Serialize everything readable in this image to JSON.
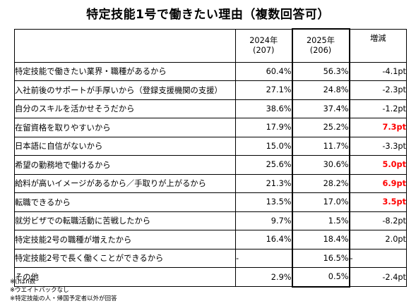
{
  "title": "特定技能1号で働きたい理由（複数回答可）",
  "chart_data": {
    "type": "table",
    "columns": [
      {
        "year": "2024年",
        "n": "(207)"
      },
      {
        "year": "2025年",
        "n": "(206)"
      },
      {
        "label": "増減"
      }
    ],
    "rows": [
      {
        "label": "特定技能で働きたい業界・職種があるから",
        "v2024": "60.4%",
        "v2025": "56.3%",
        "diff": "-4.1pt",
        "highlight": false
      },
      {
        "label": "入社前後のサポートが手厚いから（登録支援機関の支援）",
        "v2024": "27.1%",
        "v2025": "24.8%",
        "diff": "-2.3pt",
        "highlight": false
      },
      {
        "label": "自分のスキルを活かせそうだから",
        "v2024": "38.6%",
        "v2025": "37.4%",
        "diff": "-1.2pt",
        "highlight": false
      },
      {
        "label": "在留資格を取りやすいから",
        "v2024": "17.9%",
        "v2025": "25.2%",
        "diff": "7.3pt",
        "highlight": true
      },
      {
        "label": "日本語に自信がないから",
        "v2024": "15.0%",
        "v2025": "11.7%",
        "diff": "-3.3pt",
        "highlight": false
      },
      {
        "label": "希望の勤務地で働けるから",
        "v2024": "25.6%",
        "v2025": "30.6%",
        "diff": "5.0pt",
        "highlight": true
      },
      {
        "label": "給料が高いイメージがあるから／手取りが上がるから",
        "v2024": "21.3%",
        "v2025": "28.2%",
        "diff": "6.9pt",
        "highlight": true
      },
      {
        "label": "転職できるから",
        "v2024": "13.5%",
        "v2025": "17.0%",
        "diff": "3.5pt",
        "highlight": true
      },
      {
        "label": "就労ビザでの転職活動に苦戦したから",
        "v2024": "9.7%",
        "v2025": "1.5%",
        "diff": "-8.2pt",
        "highlight": false
      },
      {
        "label": "特定技能2号の職種が増えたから",
        "v2024": "16.4%",
        "v2025": "18.4%",
        "diff": "2.0pt",
        "highlight": false
      },
      {
        "label": "特定技能2号で長く働くことができるから",
        "v2024": "-",
        "v2025": "16.5%",
        "diff": "-",
        "highlight": false
      },
      {
        "label": "その他",
        "v2024": "2.9%",
        "v2025": "0.5%",
        "diff": "-2.4pt",
        "highlight": false
      }
    ],
    "highlight_color": "#ff0000"
  },
  "notes": [
    "※()はn数",
    "※ウエイトバックなし",
    "※特定技能の人・帰国予定者以外が回答"
  ]
}
